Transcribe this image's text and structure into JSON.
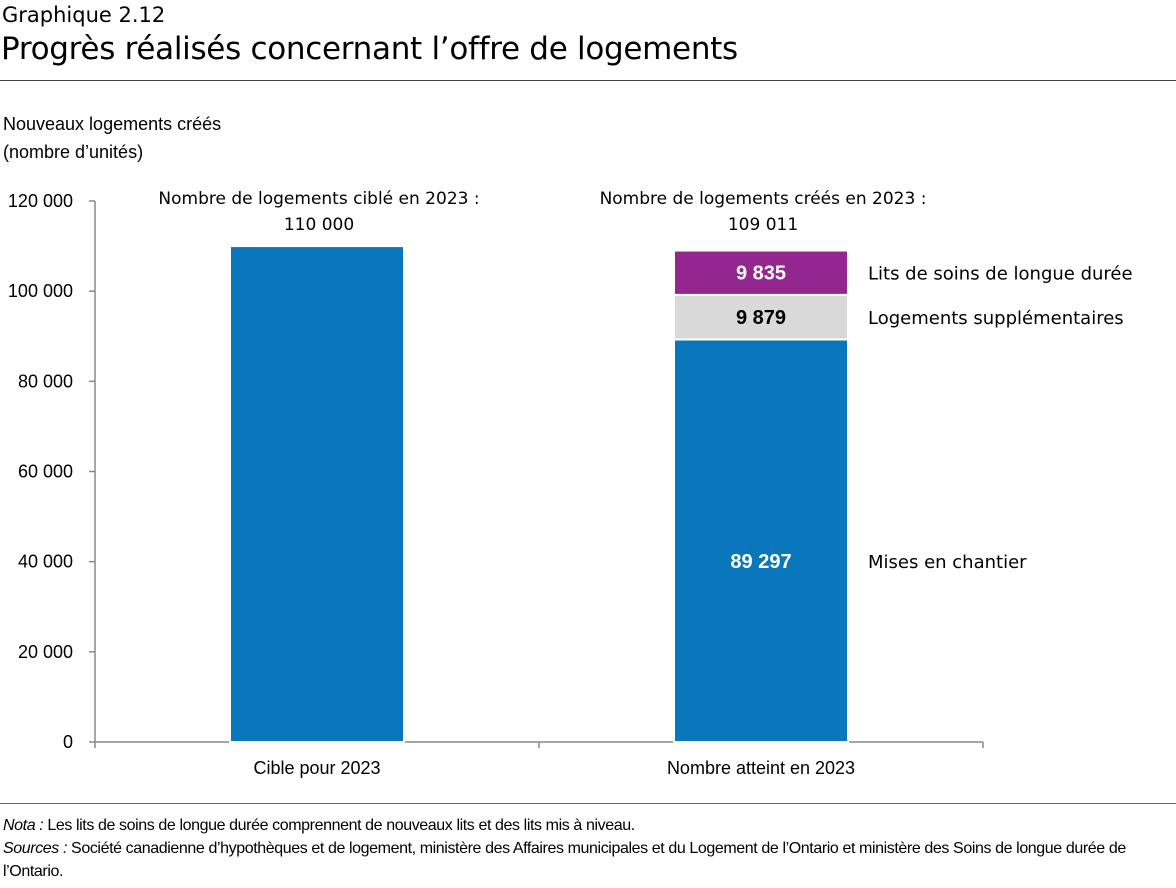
{
  "kicker": "Graphique 2.12",
  "title": "Progrès réalisés concernant l’offre de logements",
  "colors": {
    "blue": "#0a77bd",
    "gray": "#d9d9d9",
    "purple": "#93278f"
  },
  "chart_data": {
    "type": "bar",
    "stacked": true,
    "ylabel_line1": "Nouveaux logements créés",
    "ylabel_line2": "(nombre d’unités)",
    "ylim": [
      0,
      120000
    ],
    "yticks": [
      "0",
      "20 000",
      "40 000",
      "60 000",
      "80 000",
      "100 000",
      "120 000"
    ],
    "ytick_values": [
      0,
      20000,
      40000,
      60000,
      80000,
      100000,
      120000
    ],
    "grid": false,
    "categories": [
      "Cible pour 2023",
      "Nombre atteint en 2023"
    ],
    "annotations": [
      {
        "line1": "Nombre de logements ciblé en 2023 :",
        "line2": "110 000"
      },
      {
        "line1": "Nombre de logements créés en 2023 :",
        "line2": "109 011"
      }
    ],
    "series": [
      {
        "name": "Mises en chantier",
        "values": [
          110000,
          89297
        ],
        "data_labels": [
          "",
          "89 297"
        ],
        "color": "#0a77bd",
        "label_color": "#ffffff"
      },
      {
        "name": "Logements supplémentaires",
        "values": [
          0,
          9879
        ],
        "data_labels": [
          "",
          "9 879"
        ],
        "color": "#d9d9d9",
        "label_color": "#000000"
      },
      {
        "name": "Lits de soins de longue durée",
        "values": [
          0,
          9835
        ],
        "data_labels": [
          "",
          "9 835"
        ],
        "color": "#93278f",
        "label_color": "#ffffff"
      }
    ]
  },
  "notes": {
    "nota_label": "Nota :",
    "nota_text": " Les lits de soins de longue durée comprennent de nouveaux lits et des lits mis à niveau.",
    "sources_label": "Sources :",
    "sources_text": " Société canadienne d’hypothèques et de logement, ministère des Affaires municipales et du Logement de l’Ontario et ministère des Soins de longue durée de l’Ontario."
  }
}
